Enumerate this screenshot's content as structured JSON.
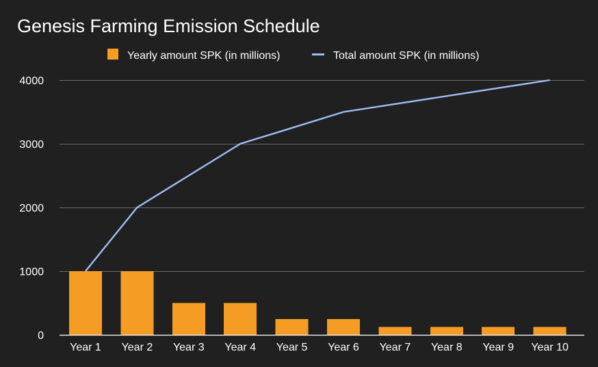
{
  "chart_data": {
    "type": "bar",
    "title": "Genesis Farming Emission Schedule",
    "categories": [
      "Year 1",
      "Year 2",
      "Year 3",
      "Year 4",
      "Year 5",
      "Year 6",
      "Year 7",
      "Year 8",
      "Year 9",
      "Year 10"
    ],
    "series": [
      {
        "name": "Yearly amount SPK (in millions)",
        "type": "bar",
        "color": "#f49c24",
        "values": [
          1000,
          1000,
          500,
          500,
          250,
          250,
          125,
          125,
          125,
          125
        ]
      },
      {
        "name": "Total amount SPK (in millions)",
        "type": "line",
        "color": "#9fbef6",
        "values": [
          1000,
          2000,
          2500,
          3000,
          3250,
          3500,
          3625,
          3750,
          3875,
          4000
        ]
      }
    ],
    "ylim": [
      0,
      4000
    ],
    "yticks": [
      "0",
      "1000",
      "2000",
      "3000",
      "4000"
    ],
    "grid": true,
    "legend": "top",
    "xlabel": "",
    "ylabel": ""
  }
}
